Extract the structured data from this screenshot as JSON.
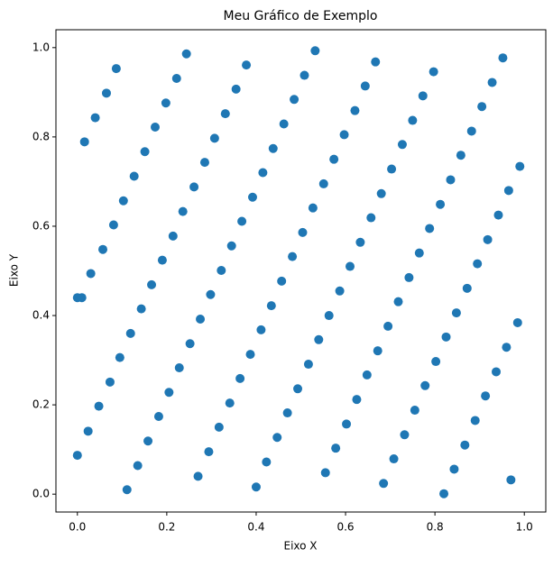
{
  "chart_data": {
    "type": "scatter",
    "title": "Meu Gráfico de Exemplo",
    "x_label": "Eixo X",
    "y_label": "Eixo Y",
    "color": "#1f77b4",
    "x": [
      0,
      0.024,
      0.048,
      0.073,
      0.095,
      0.119,
      0.143,
      0.166,
      0.19,
      0.214,
      0.236,
      0.261,
      0.285,
      0.307,
      0.331,
      0.355,
      0.378,
      0,
      0.01,
      0.03,
      0.057,
      0.081,
      0.103,
      0.127,
      0.151,
      0.174,
      0.198,
      0.222,
      0.244,
      0.016,
      0.04,
      0.065,
      0.087,
      0.111,
      0.135,
      0.158,
      0.182,
      0.205,
      0.228,
      0.252,
      0.275,
      0.298,
      0.322,
      0.345,
      0.368,
      0.392,
      0.415,
      0.438,
      0.462,
      0.485,
      0.508,
      0.532,
      0.27,
      0.294,
      0.317,
      0.341,
      0.364,
      0.387,
      0.411,
      0.434,
      0.457,
      0.481,
      0.504,
      0.527,
      0.551,
      0.574,
      0.597,
      0.621,
      0.644,
      0.667,
      0.4,
      0.423,
      0.447,
      0.47,
      0.493,
      0.517,
      0.54,
      0.563,
      0.587,
      0.61,
      0.633,
      0.657,
      0.68,
      0.703,
      0.727,
      0.75,
      0.773,
      0.797,
      0.555,
      0.578,
      0.602,
      0.625,
      0.648,
      0.672,
      0.695,
      0.718,
      0.742,
      0.765,
      0.788,
      0.812,
      0.835,
      0.858,
      0.882,
      0.905,
      0.928,
      0.952,
      0.685,
      0.708,
      0.732,
      0.755,
      0.778,
      0.802,
      0.825,
      0.848,
      0.872,
      0.895,
      0.918,
      0.942,
      0.965,
      0.99,
      0.82,
      0.843,
      0.867,
      0.89,
      0.913,
      0.937,
      0.96,
      0.985,
      0.97
    ],
    "values": [
      0.087,
      0.141,
      0.197,
      0.251,
      0.306,
      0.36,
      0.415,
      0.469,
      0.524,
      0.578,
      0.633,
      0.688,
      0.743,
      0.797,
      0.852,
      0.907,
      0.961,
      0.44,
      0.44,
      0.494,
      0.548,
      0.603,
      0.657,
      0.712,
      0.767,
      0.822,
      0.876,
      0.931,
      0.986,
      0.789,
      0.843,
      0.898,
      0.953,
      0.01,
      0.064,
      0.119,
      0.174,
      0.228,
      0.283,
      0.337,
      0.392,
      0.447,
      0.501,
      0.556,
      0.611,
      0.665,
      0.72,
      0.774,
      0.829,
      0.884,
      0.938,
      0.993,
      0.04,
      0.095,
      0.15,
      0.204,
      0.259,
      0.313,
      0.368,
      0.422,
      0.477,
      0.532,
      0.586,
      0.641,
      0.695,
      0.75,
      0.805,
      0.859,
      0.914,
      0.968,
      0.016,
      0.072,
      0.127,
      0.182,
      0.236,
      0.291,
      0.346,
      0.4,
      0.455,
      0.51,
      0.564,
      0.619,
      0.673,
      0.728,
      0.783,
      0.837,
      0.892,
      0.946,
      0.048,
      0.103,
      0.157,
      0.212,
      0.267,
      0.321,
      0.376,
      0.431,
      0.485,
      0.54,
      0.595,
      0.649,
      0.704,
      0.759,
      0.813,
      0.868,
      0.922,
      0.977,
      0.024,
      0.079,
      0.133,
      0.188,
      0.243,
      0.297,
      0.352,
      0.406,
      0.461,
      0.516,
      0.57,
      0.625,
      0.68,
      0.734,
      0.001,
      0.056,
      0.11,
      0.165,
      0.22,
      0.274,
      0.329,
      0.384,
      0.032
    ],
    "xlim": [
      -0.048,
      1.048
    ],
    "ylim": [
      -0.04,
      1.04
    ],
    "xticks": [
      {
        "value": 0,
        "label": "0.0"
      },
      {
        "value": 0.2,
        "label": "0.2"
      },
      {
        "value": 0.4,
        "label": "0.4"
      },
      {
        "value": 0.6,
        "label": "0.6"
      },
      {
        "value": 0.8,
        "label": "0.8"
      },
      {
        "value": 1,
        "label": "1.0"
      }
    ],
    "yticks": [
      {
        "value": 0,
        "label": "0.0"
      },
      {
        "value": 0.2,
        "label": "0.2"
      },
      {
        "value": 0.4,
        "label": "0.4"
      },
      {
        "value": 0.6,
        "label": "0.6"
      },
      {
        "value": 0.8,
        "label": "0.8"
      },
      {
        "value": 1,
        "label": "1.0"
      }
    ]
  }
}
